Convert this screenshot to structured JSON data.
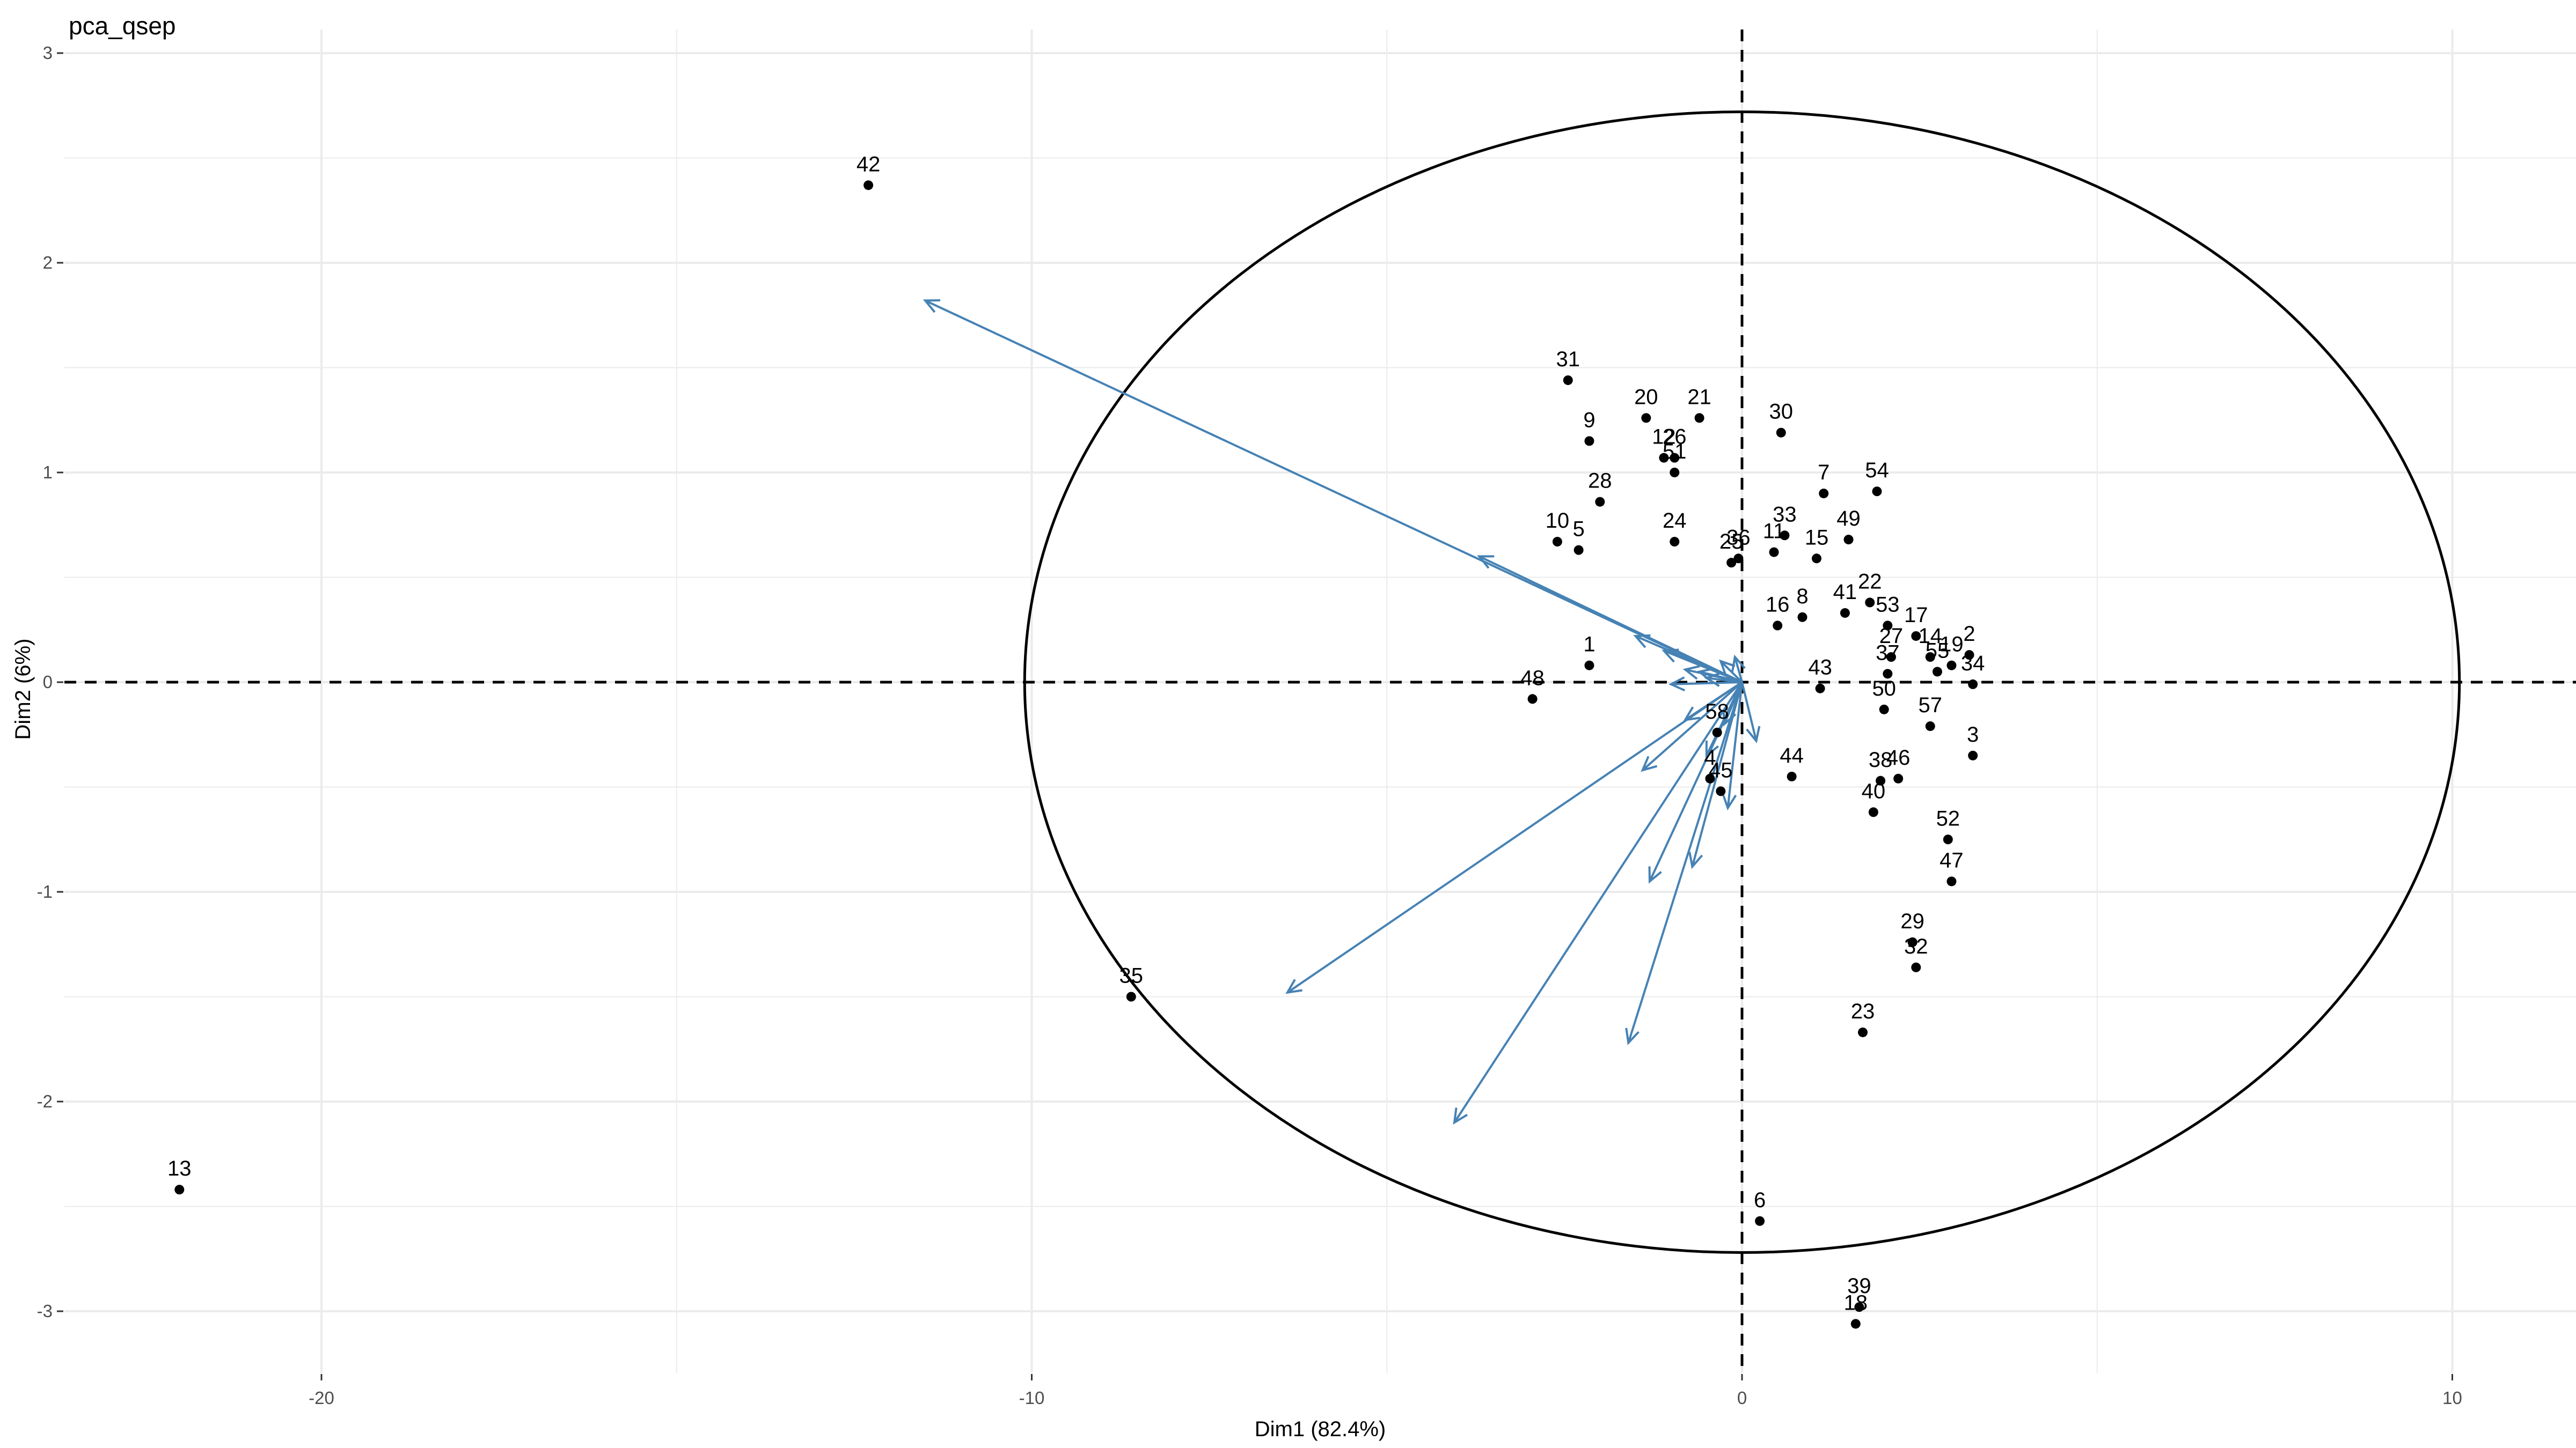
{
  "chart_data": {
    "type": "scatter",
    "title": "pca_qsep",
    "xlabel": "Dim1 (82.4%)",
    "ylabel": "Dim2 (6%)",
    "xlim": [
      -24.5,
      11.7
    ],
    "ylim": [
      -3.3,
      3.0
    ],
    "x_ticks": [
      -20,
      -10,
      0,
      10
    ],
    "y_ticks": [
      -3,
      -2,
      -1,
      0,
      1,
      2,
      3
    ],
    "grid": true,
    "reference_lines": {
      "x": 0,
      "y": 0,
      "style": "dashed"
    },
    "ellipse": {
      "cx": 0,
      "cy": 0,
      "rx": 10.1,
      "ry": 2.72
    },
    "colors": {
      "points": "#000000",
      "arrows": "#4682B4",
      "ellipse": "#000000",
      "grid": "#EBEBEB"
    },
    "points": [
      {
        "label": "42",
        "x": -12.3,
        "y": 2.37
      },
      {
        "label": "13",
        "x": -22.0,
        "y": -2.42
      },
      {
        "label": "35",
        "x": -8.6,
        "y": -1.5
      },
      {
        "label": "48",
        "x": -2.95,
        "y": -0.08
      },
      {
        "label": "1",
        "x": -2.15,
        "y": 0.08
      },
      {
        "label": "31",
        "x": -2.45,
        "y": 1.44
      },
      {
        "label": "20",
        "x": -1.35,
        "y": 1.26
      },
      {
        "label": "21",
        "x": -0.6,
        "y": 1.26
      },
      {
        "label": "9",
        "x": -2.15,
        "y": 1.15
      },
      {
        "label": "12",
        "x": -1.1,
        "y": 1.07
      },
      {
        "label": "26",
        "x": -0.95,
        "y": 1.07
      },
      {
        "label": "51",
        "x": -0.95,
        "y": 1.0
      },
      {
        "label": "28",
        "x": -2.0,
        "y": 0.86
      },
      {
        "label": "10",
        "x": -2.6,
        "y": 0.67
      },
      {
        "label": "5",
        "x": -2.3,
        "y": 0.63
      },
      {
        "label": "24",
        "x": -0.95,
        "y": 0.67
      },
      {
        "label": "25",
        "x": -0.15,
        "y": 0.57
      },
      {
        "label": "36",
        "x": -0.05,
        "y": 0.59
      },
      {
        "label": "30",
        "x": 0.55,
        "y": 1.19
      },
      {
        "label": "7",
        "x": 1.15,
        "y": 0.9
      },
      {
        "label": "54",
        "x": 1.9,
        "y": 0.91
      },
      {
        "label": "33",
        "x": 0.6,
        "y": 0.7
      },
      {
        "label": "11",
        "x": 0.45,
        "y": 0.62
      },
      {
        "label": "15",
        "x": 1.05,
        "y": 0.59
      },
      {
        "label": "49",
        "x": 1.5,
        "y": 0.68
      },
      {
        "label": "16",
        "x": 0.5,
        "y": 0.27
      },
      {
        "label": "8",
        "x": 0.85,
        "y": 0.31
      },
      {
        "label": "41",
        "x": 1.45,
        "y": 0.33
      },
      {
        "label": "22",
        "x": 1.8,
        "y": 0.38
      },
      {
        "label": "53",
        "x": 2.05,
        "y": 0.27
      },
      {
        "label": "17",
        "x": 2.45,
        "y": 0.22
      },
      {
        "label": "27",
        "x": 2.1,
        "y": 0.12
      },
      {
        "label": "14",
        "x": 2.65,
        "y": 0.12
      },
      {
        "label": "2",
        "x": 3.2,
        "y": 0.13
      },
      {
        "label": "19",
        "x": 2.95,
        "y": 0.08
      },
      {
        "label": "37",
        "x": 2.05,
        "y": 0.04
      },
      {
        "label": "55",
        "x": 2.75,
        "y": 0.05
      },
      {
        "label": "34",
        "x": 3.25,
        "y": -0.01
      },
      {
        "label": "43",
        "x": 1.1,
        "y": -0.03
      },
      {
        "label": "50",
        "x": 2.0,
        "y": -0.13
      },
      {
        "label": "57",
        "x": 2.65,
        "y": -0.21
      },
      {
        "label": "3",
        "x": 3.25,
        "y": -0.35
      },
      {
        "label": "58",
        "x": -0.35,
        "y": -0.24
      },
      {
        "label": "4",
        "x": -0.45,
        "y": -0.46
      },
      {
        "label": "45",
        "x": -0.3,
        "y": -0.52
      },
      {
        "label": "44",
        "x": 0.7,
        "y": -0.45
      },
      {
        "label": "38",
        "x": 1.95,
        "y": -0.47
      },
      {
        "label": "46",
        "x": 2.2,
        "y": -0.46
      },
      {
        "label": "40",
        "x": 1.85,
        "y": -0.62
      },
      {
        "label": "52",
        "x": 2.9,
        "y": -0.75
      },
      {
        "label": "47",
        "x": 2.95,
        "y": -0.95
      },
      {
        "label": "29",
        "x": 2.4,
        "y": -1.24
      },
      {
        "label": "32",
        "x": 2.45,
        "y": -1.36
      },
      {
        "label": "23",
        "x": 1.7,
        "y": -1.67
      },
      {
        "label": "6",
        "x": 0.25,
        "y": -2.57
      },
      {
        "label": "39",
        "x": 1.65,
        "y": -2.98
      },
      {
        "label": "18",
        "x": 1.6,
        "y": -3.06
      }
    ],
    "arrows": [
      {
        "x": -11.5,
        "y": 1.82
      },
      {
        "x": -3.7,
        "y": 0.6
      },
      {
        "x": -1.5,
        "y": 0.22
      },
      {
        "x": -1.1,
        "y": 0.15
      },
      {
        "x": -0.8,
        "y": 0.06
      },
      {
        "x": -0.6,
        "y": 0.05
      },
      {
        "x": -0.3,
        "y": 0.1
      },
      {
        "x": -0.1,
        "y": 0.12
      },
      {
        "x": -1.0,
        "y": -0.01
      },
      {
        "x": -0.5,
        "y": 0.02
      },
      {
        "x": -0.8,
        "y": -0.18
      },
      {
        "x": -1.4,
        "y": -0.42
      },
      {
        "x": -6.4,
        "y": -1.48
      },
      {
        "x": -4.05,
        "y": -2.1
      },
      {
        "x": -1.3,
        "y": -0.95
      },
      {
        "x": -1.6,
        "y": -1.72
      },
      {
        "x": -0.7,
        "y": -0.88
      },
      {
        "x": -0.2,
        "y": -0.6
      },
      {
        "x": 0.2,
        "y": -0.28
      },
      {
        "x": -0.5,
        "y": -0.35
      },
      {
        "x": -0.25,
        "y": -0.2
      }
    ]
  }
}
